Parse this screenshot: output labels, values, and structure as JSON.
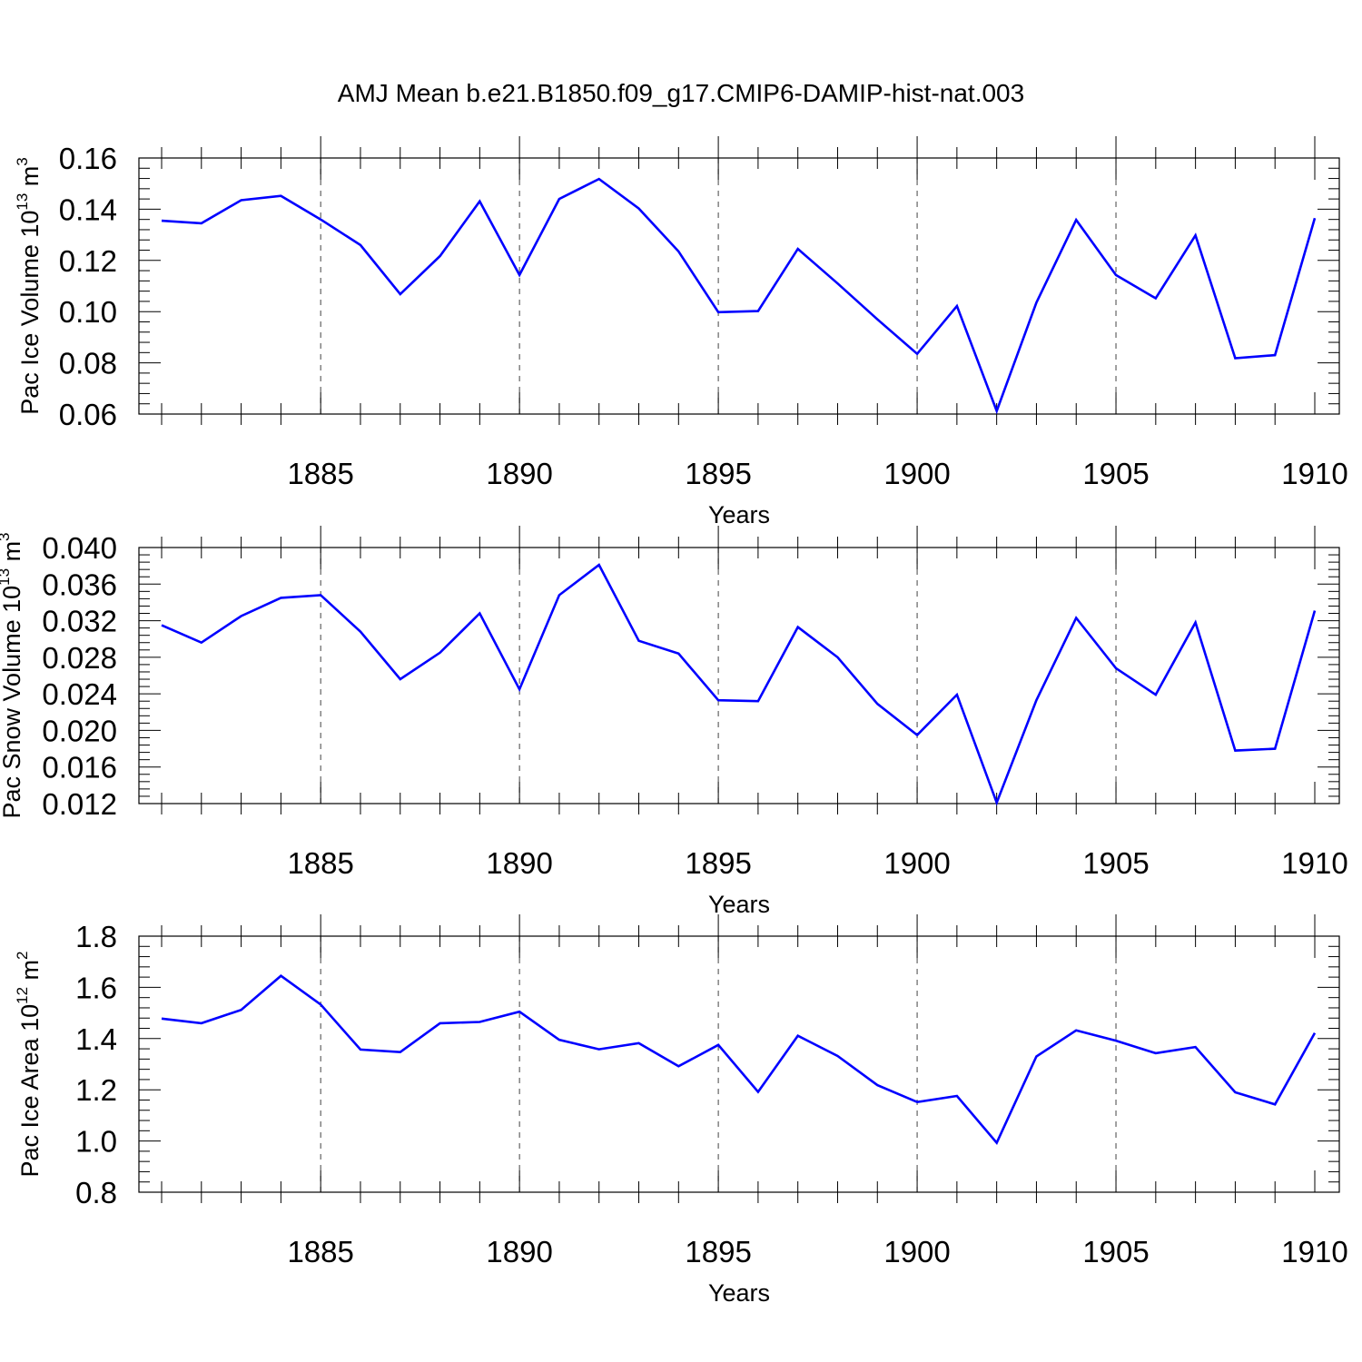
{
  "figure": {
    "title": "AMJ Mean b.e21.B1850.f09_g17.CMIP6-DAMIP-hist-nat.003"
  },
  "chart_data": [
    {
      "type": "line",
      "ylabel": "Pac Ice Volume 10",
      "ylabel_sup": "13",
      "ylabel_unit": " m",
      "ylabel_unit_sup": "3",
      "xlabel": "Years",
      "xlim": [
        1881,
        1910
      ],
      "ylim": [
        0.06,
        0.16
      ],
      "xticks": [
        1885,
        1890,
        1895,
        1900,
        1905,
        1910
      ],
      "yticks": [
        "0.06",
        "0.08",
        "0.10",
        "0.12",
        "0.14",
        "0.16"
      ],
      "grid": "vertical dashed at major x ticks",
      "color": "#0000ff",
      "x": [
        1881,
        1882,
        1883,
        1884,
        1885,
        1886,
        1887,
        1888,
        1889,
        1890,
        1891,
        1892,
        1893,
        1894,
        1895,
        1896,
        1897,
        1898,
        1899,
        1900,
        1901,
        1902,
        1903,
        1904,
        1905,
        1906,
        1907,
        1908,
        1909,
        1910
      ],
      "values": [
        0.1355,
        0.1345,
        0.1435,
        0.1452,
        0.136,
        0.126,
        0.1068,
        0.1217,
        0.1431,
        0.1143,
        0.144,
        0.1518,
        0.1403,
        0.1235,
        0.0998,
        0.1002,
        0.1245,
        0.111,
        0.097,
        0.0835,
        0.1022,
        0.0612,
        0.1035,
        0.1358,
        0.1143,
        0.1052,
        0.1298,
        0.0818,
        0.083,
        0.1365
      ]
    },
    {
      "type": "line",
      "ylabel": "Pac Snow Volume 10",
      "ylabel_sup": "13",
      "ylabel_unit": " m",
      "ylabel_unit_sup": "3",
      "xlabel": "Years",
      "xlim": [
        1881,
        1910
      ],
      "ylim": [
        0.012,
        0.04
      ],
      "xticks": [
        1885,
        1890,
        1895,
        1900,
        1905,
        1910
      ],
      "yticks": [
        "0.012",
        "0.016",
        "0.020",
        "0.024",
        "0.028",
        "0.032",
        "0.036",
        "0.040"
      ],
      "grid": "vertical dashed at major x ticks",
      "color": "#0000ff",
      "x": [
        1881,
        1882,
        1883,
        1884,
        1885,
        1886,
        1887,
        1888,
        1889,
        1890,
        1891,
        1892,
        1893,
        1894,
        1895,
        1896,
        1897,
        1898,
        1899,
        1900,
        1901,
        1902,
        1903,
        1904,
        1905,
        1906,
        1907,
        1908,
        1909,
        1910
      ],
      "values": [
        0.0315,
        0.0296,
        0.0325,
        0.0345,
        0.0348,
        0.0308,
        0.0256,
        0.0285,
        0.0328,
        0.0245,
        0.0348,
        0.0381,
        0.0298,
        0.0284,
        0.0233,
        0.0232,
        0.0313,
        0.028,
        0.0229,
        0.0195,
        0.0239,
        0.0121,
        0.0233,
        0.0323,
        0.0268,
        0.0239,
        0.0318,
        0.0178,
        0.018,
        0.0331
      ]
    },
    {
      "type": "line",
      "ylabel": "Pac Ice Area 10",
      "ylabel_sup": "12",
      "ylabel_unit": " m",
      "ylabel_unit_sup": "2",
      "xlabel": "Years",
      "xlim": [
        1881,
        1910
      ],
      "ylim": [
        0.8,
        1.8
      ],
      "xticks": [
        1885,
        1890,
        1895,
        1900,
        1905,
        1910
      ],
      "yticks": [
        "0.8",
        "1.0",
        "1.2",
        "1.4",
        "1.6",
        "1.8"
      ],
      "grid": "vertical dashed at major x ticks",
      "color": "#0000ff",
      "x": [
        1881,
        1882,
        1883,
        1884,
        1885,
        1886,
        1887,
        1888,
        1889,
        1890,
        1891,
        1892,
        1893,
        1894,
        1895,
        1896,
        1897,
        1898,
        1899,
        1900,
        1901,
        1902,
        1903,
        1904,
        1905,
        1906,
        1907,
        1908,
        1909,
        1910
      ],
      "values": [
        1.478,
        1.46,
        1.512,
        1.645,
        1.533,
        1.357,
        1.347,
        1.46,
        1.465,
        1.505,
        1.395,
        1.358,
        1.382,
        1.292,
        1.375,
        1.192,
        1.411,
        1.332,
        1.218,
        1.152,
        1.176,
        0.993,
        1.33,
        1.432,
        1.392,
        1.343,
        1.367,
        1.19,
        1.143,
        1.422
      ]
    }
  ]
}
